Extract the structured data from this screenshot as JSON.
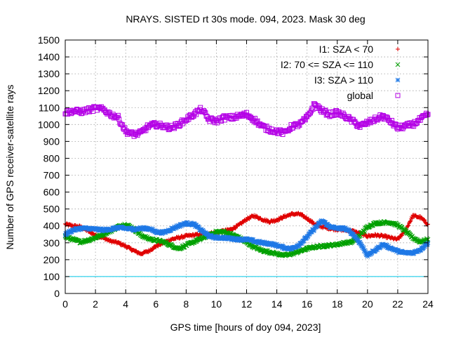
{
  "chart_data": {
    "type": "scatter",
    "title": "NRAYS. SISTED rt 30s mode. 094, 2023. Mask 30 deg",
    "xlabel": "GPS time [hours of doy 094, 2023]",
    "ylabel": "Number of GPS receiver-satellite rays",
    "xlim": [
      0,
      24
    ],
    "ylim": [
      0,
      1500
    ],
    "x_ticks": [
      0,
      2,
      4,
      6,
      8,
      10,
      12,
      14,
      16,
      18,
      20,
      22,
      24
    ],
    "y_ticks": [
      0,
      100,
      200,
      300,
      400,
      500,
      600,
      700,
      800,
      900,
      1000,
      1100,
      1200,
      1300,
      1400,
      1500
    ],
    "grid": true,
    "legend_position": "top-right",
    "reference_line": {
      "y": 100,
      "color": "#00c8e6"
    },
    "series": [
      {
        "name": "I1: SZA < 70",
        "marker": "+",
        "color": "#e00000",
        "x": [
          0,
          0.5,
          1,
          1.5,
          2,
          2.5,
          3,
          3.5,
          4,
          4.5,
          5,
          5.5,
          6,
          6.5,
          7,
          7.5,
          8,
          8.5,
          9,
          9.5,
          10,
          10.5,
          11,
          11.5,
          12,
          12.5,
          13,
          13.5,
          14,
          14.5,
          15,
          15.5,
          16,
          16.5,
          17,
          17.5,
          18,
          18.5,
          19,
          19.5,
          20,
          20.5,
          21,
          21.5,
          22,
          22.5,
          23,
          23.5,
          24
        ],
        "values": [
          410,
          400,
          395,
          370,
          345,
          330,
          310,
          300,
          280,
          255,
          235,
          250,
          280,
          300,
          320,
          330,
          340,
          345,
          350,
          355,
          360,
          370,
          380,
          405,
          440,
          460,
          440,
          425,
          435,
          455,
          470,
          470,
          445,
          410,
          395,
          385,
          380,
          375,
          370,
          355,
          340,
          345,
          340,
          330,
          320,
          370,
          460,
          450,
          410
        ]
      },
      {
        "name": "I2: 70 <= SZA <= 110",
        "marker": "x",
        "color": "#00a000",
        "x": [
          0,
          0.5,
          1,
          1.5,
          2,
          2.5,
          3,
          3.5,
          4,
          4.5,
          5,
          5.5,
          6,
          6.5,
          7,
          7.5,
          8,
          8.5,
          9,
          9.5,
          10,
          10.5,
          11,
          11.5,
          12,
          12.5,
          13,
          13.5,
          14,
          14.5,
          15,
          15.5,
          16,
          16.5,
          17,
          17.5,
          18,
          18.5,
          19,
          19.5,
          20,
          20.5,
          21,
          21.5,
          22,
          22.5,
          23,
          23.5,
          24
        ],
        "values": [
          335,
          320,
          305,
          315,
          330,
          350,
          370,
          395,
          410,
          385,
          345,
          325,
          315,
          305,
          285,
          265,
          285,
          305,
          325,
          345,
          365,
          365,
          350,
          330,
          300,
          275,
          255,
          245,
          235,
          225,
          235,
          250,
          265,
          275,
          280,
          285,
          290,
          300,
          305,
          345,
          395,
          415,
          420,
          420,
          405,
          370,
          330,
          305,
          320
        ]
      },
      {
        "name": "I3: SZA > 110",
        "marker": "*",
        "color": "#1e78e6",
        "x": [
          0,
          0.5,
          1,
          1.5,
          2,
          2.5,
          3,
          3.5,
          4,
          4.5,
          5,
          5.5,
          6,
          6.5,
          7,
          7.5,
          8,
          8.5,
          9,
          9.5,
          10,
          10.5,
          11,
          11.5,
          12,
          12.5,
          13,
          13.5,
          14,
          14.5,
          15,
          15.5,
          16,
          16.5,
          17,
          17.5,
          18,
          18.5,
          19,
          19.5,
          20,
          20.5,
          21,
          21.5,
          22,
          22.5,
          23,
          23.5,
          24
        ],
        "values": [
          350,
          375,
          385,
          385,
          380,
          375,
          380,
          390,
          385,
          380,
          385,
          385,
          365,
          360,
          380,
          400,
          415,
          410,
          375,
          340,
          330,
          330,
          325,
          320,
          320,
          310,
          300,
          295,
          285,
          270,
          265,
          290,
          335,
          385,
          430,
          395,
          385,
          385,
          355,
          300,
          225,
          255,
          290,
          270,
          250,
          240,
          240,
          260,
          300
        ]
      },
      {
        "name": "global",
        "marker": "square",
        "color": "#b400e6",
        "x": [
          0,
          0.5,
          1,
          1.5,
          2,
          2.5,
          3,
          3.5,
          4,
          4.5,
          5,
          5.5,
          6,
          6.5,
          7,
          7.5,
          8,
          8.5,
          9,
          9.5,
          10,
          10.5,
          11,
          11.5,
          12,
          12.5,
          13,
          13.5,
          14,
          14.5,
          15,
          15.5,
          16,
          16.5,
          17,
          17.5,
          18,
          18.5,
          19,
          19.5,
          20,
          20.5,
          21,
          21.5,
          22,
          22.5,
          23,
          23.5,
          24
        ],
        "values": [
          1070,
          1080,
          1075,
          1085,
          1095,
          1090,
          1060,
          1040,
          960,
          940,
          950,
          990,
          1000,
          990,
          980,
          1000,
          1030,
          1060,
          1090,
          1030,
          1020,
          1040,
          1040,
          1050,
          1060,
          1030,
          990,
          970,
          960,
          950,
          990,
          1000,
          1040,
          1120,
          1080,
          1060,
          1070,
          1050,
          1020,
          990,
          1010,
          1030,
          1050,
          1020,
          980,
          990,
          1000,
          1030,
          1060
        ]
      }
    ]
  }
}
